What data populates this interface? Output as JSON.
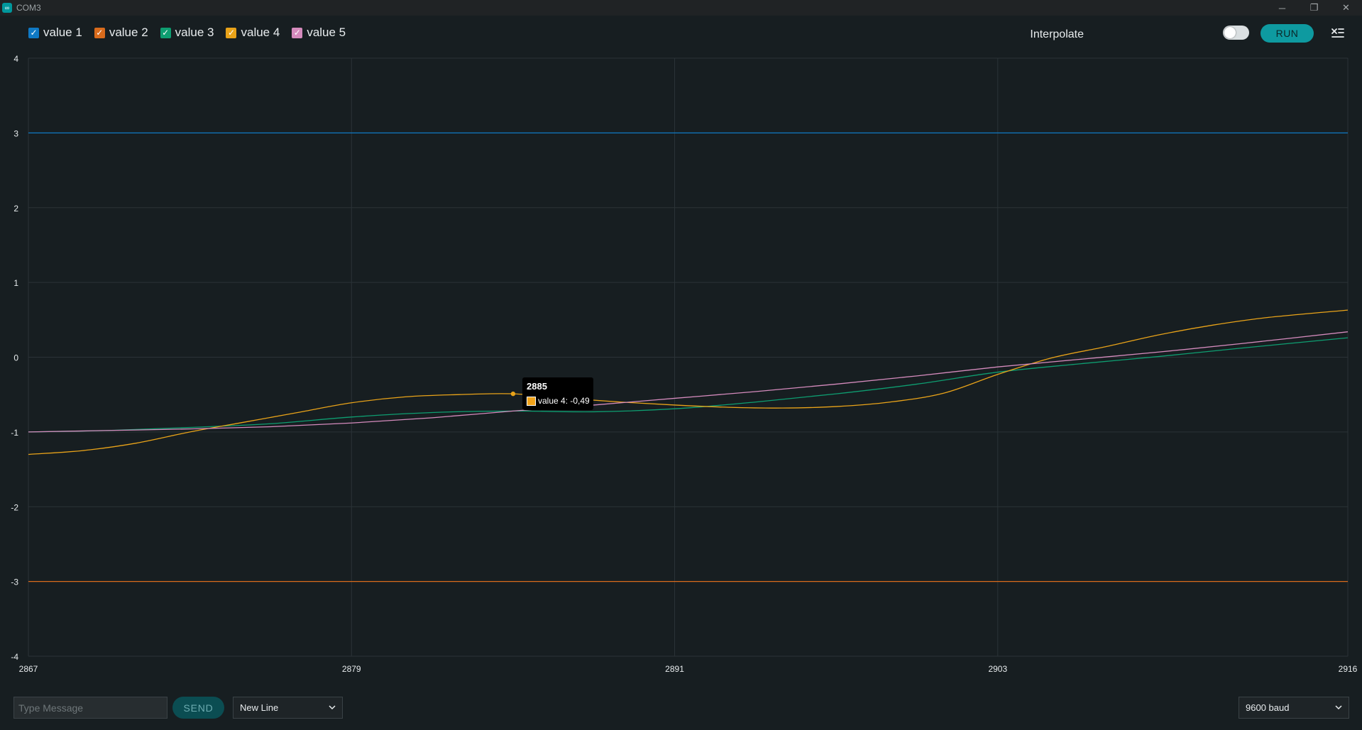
{
  "window": {
    "title": "COM3",
    "app_icon_glyph": "∞",
    "minimize_glyph": "─",
    "restore_glyph": "❐",
    "close_glyph": "✕"
  },
  "legend": [
    {
      "label": "value 1",
      "color": "#0f79c4",
      "checked": true
    },
    {
      "label": "value 2",
      "color": "#d96b1c",
      "checked": true
    },
    {
      "label": "value 3",
      "color": "#0e9e71",
      "checked": true
    },
    {
      "label": "value 4",
      "color": "#e9a319",
      "checked": true
    },
    {
      "label": "value 5",
      "color": "#d58bbd",
      "checked": true
    }
  ],
  "toolbar": {
    "interpolate_label": "Interpolate",
    "interpolate_on": false,
    "run_label": "RUN",
    "menu_icon": "clear-list-icon"
  },
  "chart_data": {
    "type": "line",
    "xlabel": "",
    "ylabel": "",
    "xlim": [
      2867,
      2916
    ],
    "ylim": [
      -4,
      4
    ],
    "x_ticks": [
      "2867",
      "2879",
      "2891",
      "2903",
      "2916"
    ],
    "y_ticks": [
      "4",
      "3",
      "2",
      "1",
      "0",
      "-1",
      "-2",
      "-3",
      "-4"
    ],
    "grid": true,
    "series": [
      {
        "name": "value 1",
        "color": "#0f79c4",
        "points": [
          [
            2867,
            3
          ],
          [
            2916,
            3
          ]
        ]
      },
      {
        "name": "value 2",
        "color": "#d96b1c",
        "points": [
          [
            2867,
            -3
          ],
          [
            2916,
            -3
          ]
        ]
      },
      {
        "name": "value 3",
        "color": "#0e9e71",
        "points": [
          [
            2867,
            -1.0
          ],
          [
            2870,
            -0.98
          ],
          [
            2873,
            -0.94
          ],
          [
            2876,
            -0.89
          ],
          [
            2879,
            -0.8
          ],
          [
            2882,
            -0.74
          ],
          [
            2885,
            -0.72
          ],
          [
            2888,
            -0.73
          ],
          [
            2891,
            -0.69
          ],
          [
            2894,
            -0.6
          ],
          [
            2897,
            -0.49
          ],
          [
            2900,
            -0.36
          ],
          [
            2903,
            -0.2
          ],
          [
            2906,
            -0.09
          ],
          [
            2909,
            0.01
          ],
          [
            2912,
            0.12
          ],
          [
            2916,
            0.26
          ]
        ]
      },
      {
        "name": "value 4",
        "color": "#e9a319",
        "points": [
          [
            2867,
            -1.3
          ],
          [
            2869,
            -1.25
          ],
          [
            2871,
            -1.15
          ],
          [
            2873,
            -1.0
          ],
          [
            2875,
            -0.87
          ],
          [
            2877,
            -0.74
          ],
          [
            2879,
            -0.61
          ],
          [
            2881,
            -0.53
          ],
          [
            2883,
            -0.5
          ],
          [
            2885,
            -0.49
          ],
          [
            2887,
            -0.55
          ],
          [
            2889,
            -0.6
          ],
          [
            2891,
            -0.64
          ],
          [
            2893,
            -0.67
          ],
          [
            2895,
            -0.68
          ],
          [
            2897,
            -0.66
          ],
          [
            2899,
            -0.6
          ],
          [
            2901,
            -0.48
          ],
          [
            2903,
            -0.23
          ],
          [
            2905,
            -0.01
          ],
          [
            2907,
            0.14
          ],
          [
            2909,
            0.3
          ],
          [
            2911,
            0.43
          ],
          [
            2913,
            0.53
          ],
          [
            2916,
            0.63
          ]
        ]
      },
      {
        "name": "value 5",
        "color": "#d58bbd",
        "points": [
          [
            2867,
            -1.0
          ],
          [
            2870,
            -0.98
          ],
          [
            2873,
            -0.96
          ],
          [
            2876,
            -0.93
          ],
          [
            2879,
            -0.88
          ],
          [
            2882,
            -0.81
          ],
          [
            2885,
            -0.72
          ],
          [
            2888,
            -0.64
          ],
          [
            2891,
            -0.55
          ],
          [
            2894,
            -0.46
          ],
          [
            2897,
            -0.36
          ],
          [
            2900,
            -0.25
          ],
          [
            2903,
            -0.13
          ],
          [
            2906,
            -0.03
          ],
          [
            2909,
            0.07
          ],
          [
            2912,
            0.18
          ],
          [
            2916,
            0.34
          ]
        ]
      }
    ],
    "hover_point": {
      "x": 2885,
      "y": -0.49,
      "series": "value 4",
      "color": "#e9a319"
    }
  },
  "tooltip": {
    "title": "2885",
    "row_text": "value 4: -0,49"
  },
  "bottom": {
    "message_placeholder": "Type Message",
    "send_label": "SEND",
    "line_ending": "New Line",
    "baud_rate": "9600 baud"
  }
}
